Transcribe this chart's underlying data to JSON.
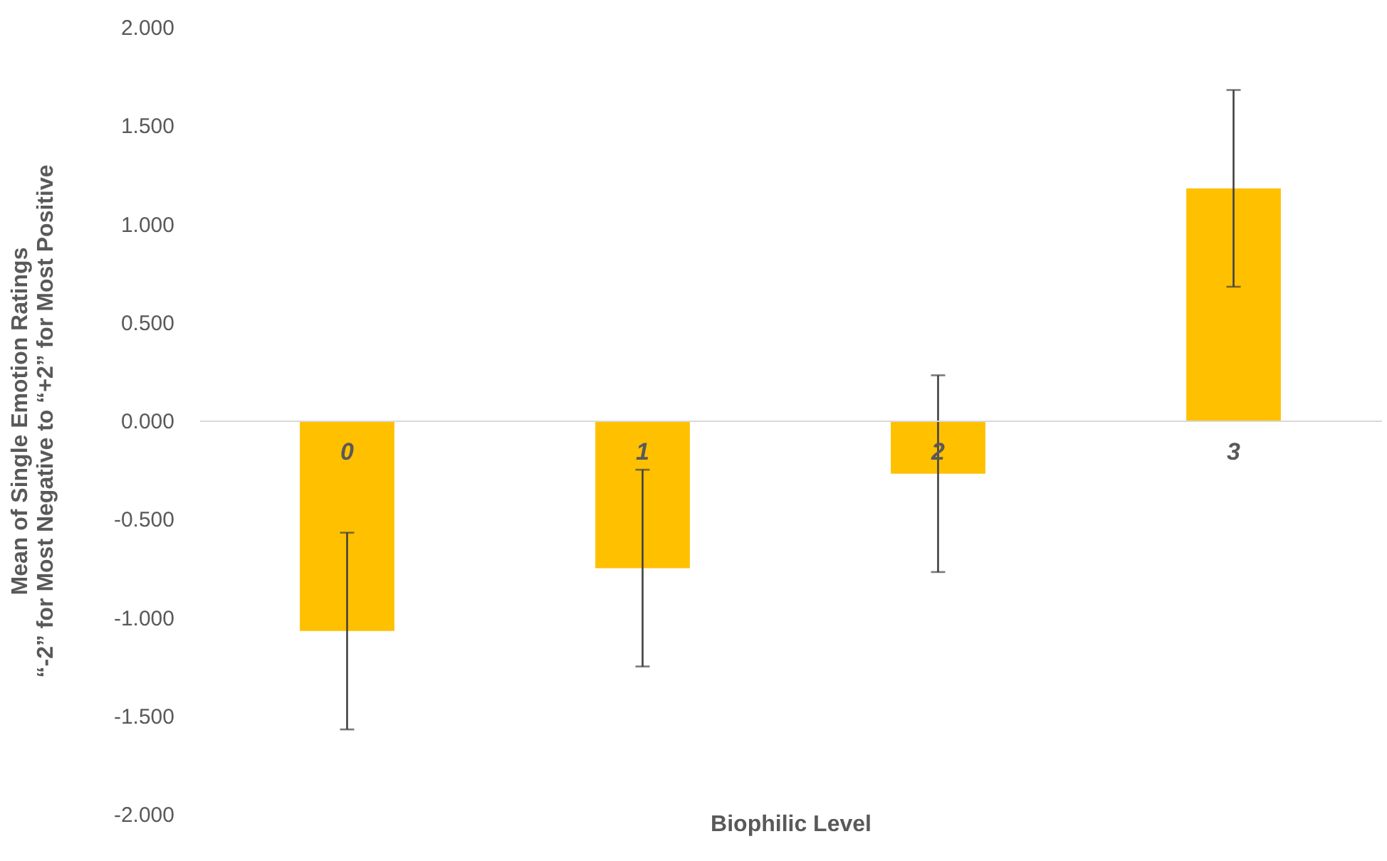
{
  "chart_data": {
    "type": "bar",
    "xlabel": "Biophilic Level",
    "ylabel": "Mean of Single Emotion Ratings\n“-2” for Most Negative to “+2” for Most Positive",
    "categories": [
      "0",
      "1",
      "2",
      "3"
    ],
    "values": [
      -1.07,
      -0.75,
      -0.27,
      1.18
    ],
    "errors": [
      0.5,
      0.5,
      0.5,
      0.5
    ],
    "color": "#ffc000",
    "ylim": [
      -2,
      2
    ],
    "yticks": [
      {
        "value": -2,
        "label": "-2.000"
      },
      {
        "value": -1.5,
        "label": "-1.500"
      },
      {
        "value": -1,
        "label": "-1.000"
      },
      {
        "value": -0.5,
        "label": "-0.500"
      },
      {
        "value": 0,
        "label": "0.000"
      },
      {
        "value": 0.5,
        "label": "0.500"
      },
      {
        "value": 1,
        "label": "1.000"
      },
      {
        "value": 1.5,
        "label": "1.500"
      },
      {
        "value": 2,
        "label": "2.000"
      }
    ],
    "grid": false
  }
}
